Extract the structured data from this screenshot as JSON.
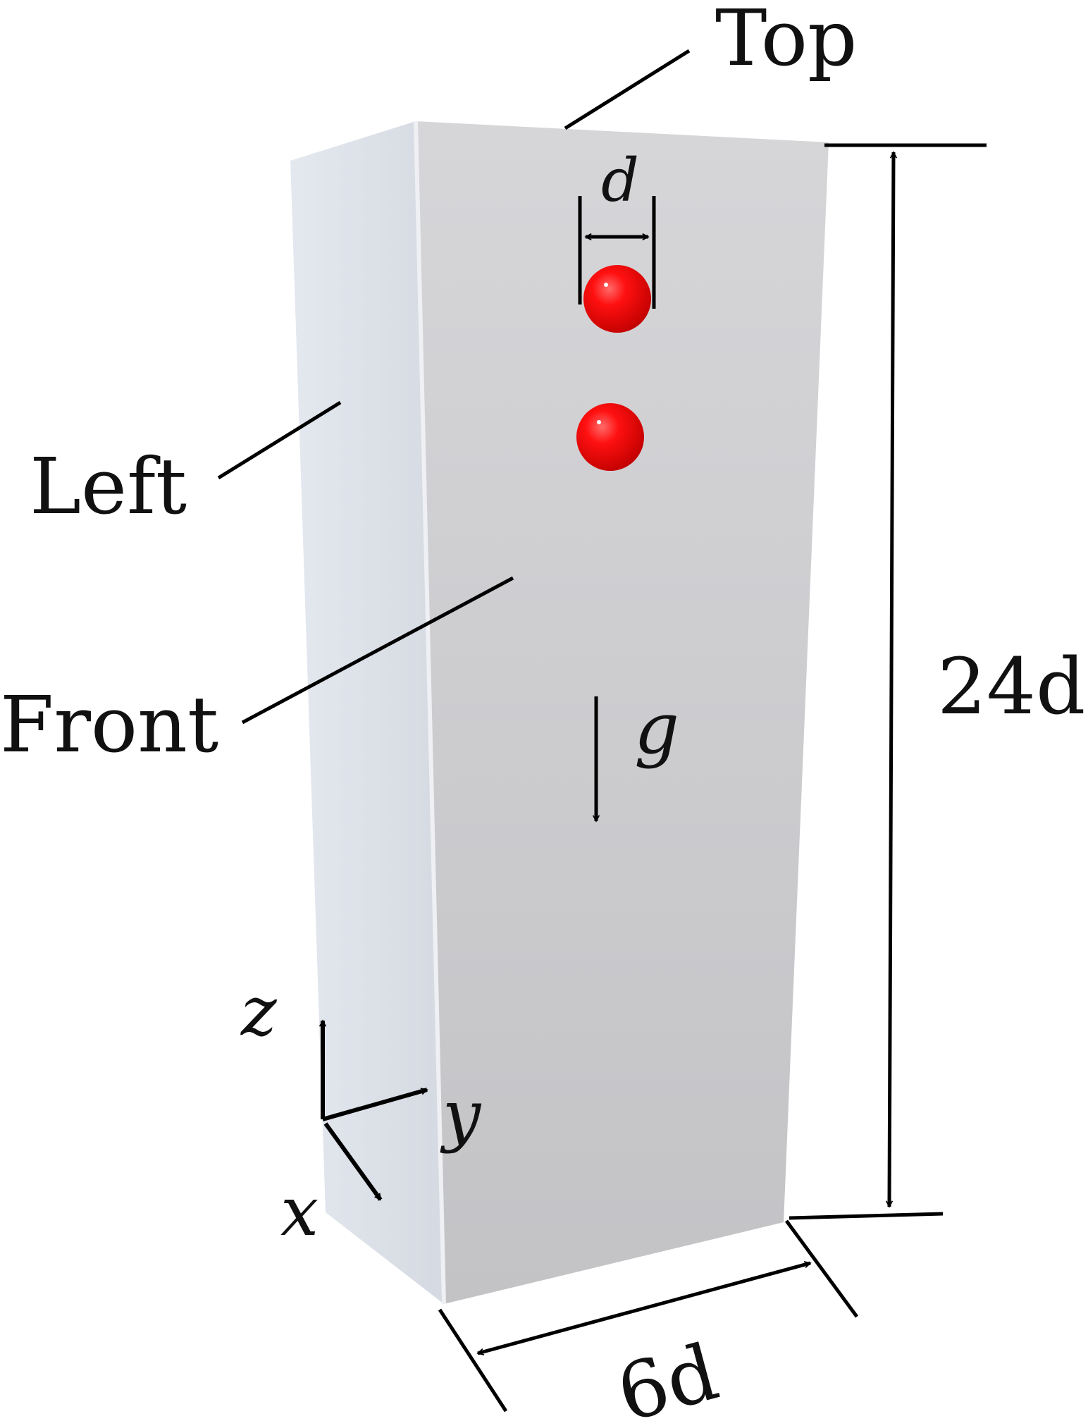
{
  "labels": {
    "top": "Top",
    "left": "Left",
    "front": "Front",
    "particle_diameter": "d",
    "height": "24d",
    "width": "6d",
    "gravity": "g",
    "axis_x": "x",
    "axis_y": "y",
    "axis_z": "z"
  },
  "colors": {
    "box_front": "#c9c9cc",
    "box_left": "#dfe3ea",
    "particle": "#ee0000",
    "ink": "#000000"
  },
  "particles_count": 2
}
